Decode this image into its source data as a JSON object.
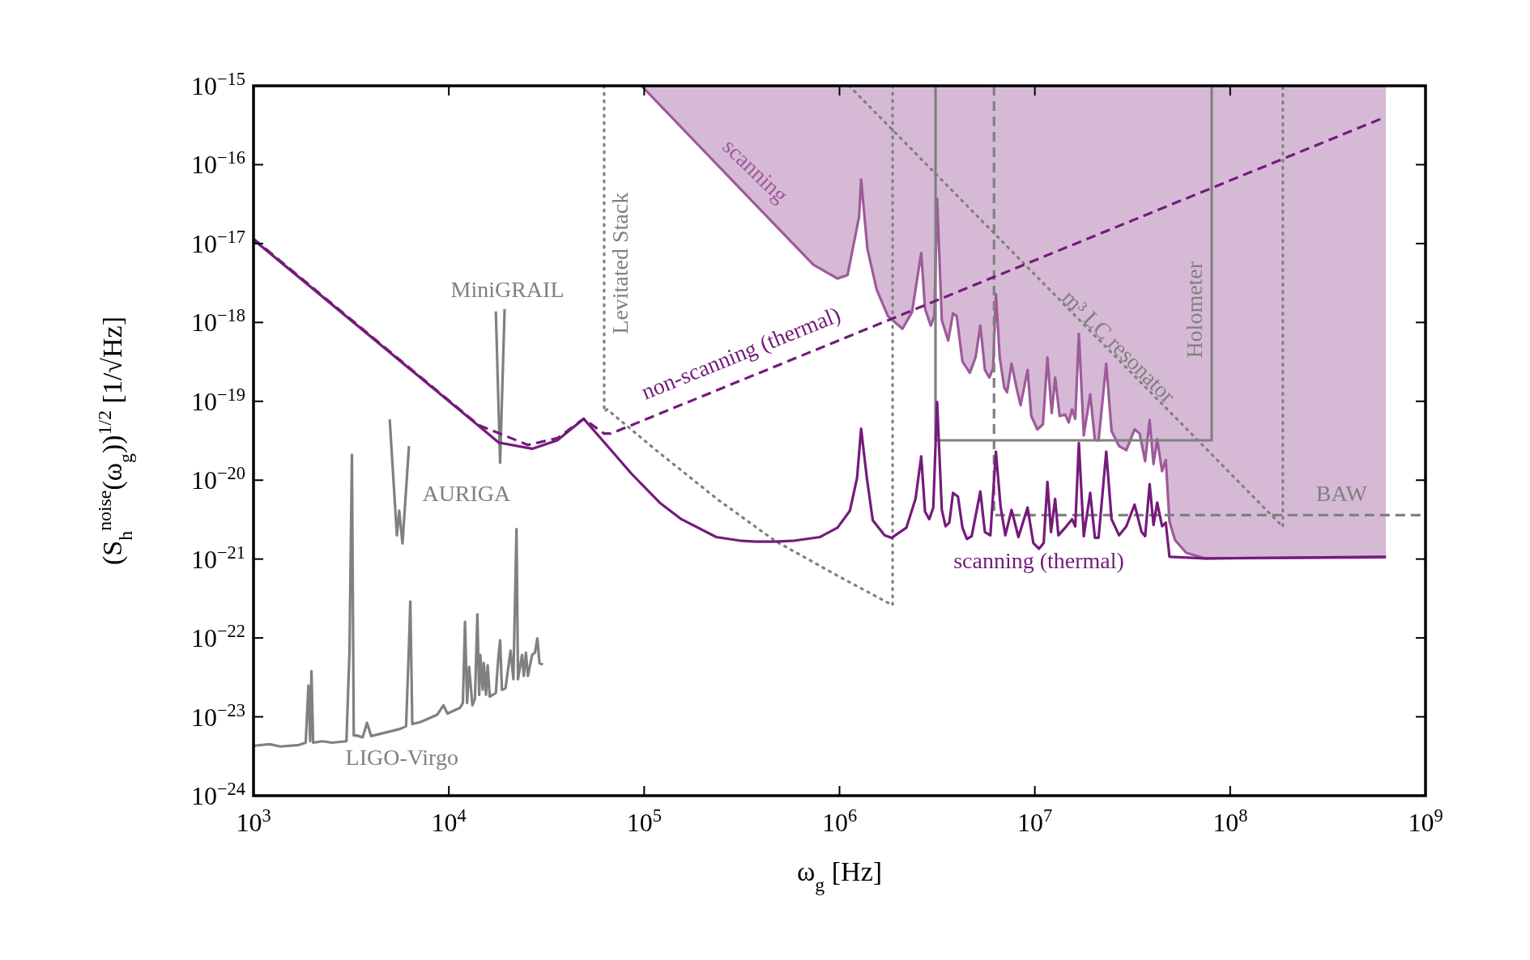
{
  "chart_data": {
    "type": "line",
    "xlabel": "ω$_{g}$ [Hz]",
    "ylabel": "(S$_{h}$$^{noise}$(ω$_{g}$))$^{1/2}$ [1/√Hz]",
    "log": "xy",
    "legend": false,
    "grid": false,
    "xlim": [
      1000,
      1000000000
    ],
    "ylim": [
      1e-24,
      1e-15
    ],
    "xticks": [
      {
        "value": 1000,
        "label": "10$^{3}$"
      },
      {
        "value": 10000,
        "label": "10$^{4}$"
      },
      {
        "value": 100000,
        "label": "10$^{5}$"
      },
      {
        "value": 1000000,
        "label": "10$^{6}$"
      },
      {
        "value": 10000000,
        "label": "10$^{7}$"
      },
      {
        "value": 100000000,
        "label": "10$^{8}$"
      },
      {
        "value": 1000000000,
        "label": "10$^{9}$"
      }
    ],
    "yticks": [
      {
        "value": 1e-24,
        "label": "10$^{−24}$"
      },
      {
        "value": 1e-23,
        "label": "10$^{−23}$"
      },
      {
        "value": 1e-22,
        "label": "10$^{−22}$"
      },
      {
        "value": 1e-21,
        "label": "10$^{−21}$"
      },
      {
        "value": 1e-20,
        "label": "10$^{−20}$"
      },
      {
        "value": 1e-19,
        "label": "10$^{−19}$"
      },
      {
        "value": 1e-18,
        "label": "10$^{−18}$"
      },
      {
        "value": 1e-17,
        "label": "10$^{−17}$"
      },
      {
        "value": 1e-16,
        "label": "10$^{−16}$"
      },
      {
        "value": 1e-15,
        "label": "10$^{−15}$"
      }
    ],
    "series": [
      {
        "name": "scanning (thermal)",
        "color": "#741b7c",
        "line_style": "solid",
        "x": [
          1000,
          14200,
          18000,
          26700,
          35900,
          49000,
          61200,
          86300,
          120000,
          155000,
          234000,
          316000,
          372000,
          468000,
          575000,
          794000,
          977000,
          1130000,
          1230000,
          1290000,
          1380000,
          1480000,
          1700000,
          1850000,
          2200000,
          2450000,
          2620000,
          2740000,
          2880000,
          3020000,
          3160000,
          3340000,
          3490000,
          3650000,
          3810000,
          4040000,
          4260000,
          4490000,
          4750000,
          5260000,
          5550000,
          5920000,
          6320000,
          6670000,
          7060000,
          7600000,
          8240000,
          9180000,
          9820000,
          10500000,
          11100000,
          11600000,
          12100000,
          12700000,
          13200000,
          14300000,
          15500000,
          16100000,
          16800000,
          17800000,
          19200000,
          20300000,
          21200000,
          23200000,
          24700000,
          27000000,
          29400000,
          32400000,
          35200000,
          36700000,
          38700000,
          40500000,
          42300000,
          44800000,
          46800000,
          48900000,
          74100000,
          627000000
        ],
        "values": [
          1.12e-17,
          4.9e-20,
          3e-20,
          2.5e-20,
          3.2e-20,
          6e-20,
          3.2e-20,
          1.2e-20,
          5.2e-21,
          3.2e-21,
          1.9e-21,
          1.7e-21,
          1.66e-21,
          1.66e-21,
          1.7e-21,
          1.9e-21,
          2.5e-21,
          4.1e-21,
          1.07e-20,
          4.5e-20,
          1.07e-20,
          3.1e-21,
          2e-21,
          1.86e-21,
          2.5e-21,
          5.8e-21,
          2e-20,
          4e-21,
          3.2e-21,
          4.5e-21,
          9.8e-20,
          4.2e-21,
          2.6e-21,
          2.9e-21,
          6.9e-21,
          6.2e-21,
          2.5e-21,
          1.8e-21,
          1.95e-21,
          7.2e-21,
          2.2e-21,
          2e-21,
          2.3e-20,
          4.7e-21,
          2e-21,
          4.2e-21,
          1.9e-21,
          4.5e-21,
          1.6e-21,
          1.35e-21,
          1.6e-21,
          9.5e-21,
          2.2e-21,
          5.8e-21,
          2e-21,
          2.5e-21,
          3.2e-21,
          2.6e-21,
          2.95e-20,
          1.95e-21,
          6.9e-21,
          1.86e-21,
          1.86e-21,
          2.3e-20,
          3.2e-21,
          2e-21,
          2.6e-21,
          4.9e-21,
          2.2e-21,
          1.95e-21,
          8.9e-21,
          2.7e-21,
          5.2e-21,
          2.6e-21,
          2.9e-21,
          1.07e-21,
          1.02e-21,
          1.07e-21
        ]
      },
      {
        "name": "non-scanning (thermal)",
        "color": "#741b7c",
        "line_style": "dashed",
        "x": [
          1000,
          14200,
          25400,
          35900,
          49000,
          62400,
          67600,
          620000000
        ],
        "values": [
          1.15e-17,
          5e-20,
          2.8e-20,
          3.4e-20,
          6e-20,
          3.9e-20,
          3.9e-20,
          4e-16
        ]
      },
      {
        "name": "scanning",
        "color": "#9e5a9b",
        "line_style": "solid",
        "x": [
          96800,
          733000,
          977000,
          1100000,
          1260000,
          1290000,
          1390000,
          1550000,
          1770000,
          2100000,
          2350000,
          2620000,
          2740000,
          2930000,
          3060000,
          3160000,
          3340000,
          3600000,
          3810000,
          3980000,
          4260000,
          4650000,
          4970000,
          5260000,
          5550000,
          5850000,
          6110000,
          6320000,
          6610000,
          6970000,
          7210000,
          7600000,
          8050000,
          8450000,
          9180000,
          9590000,
          10300000,
          11000000,
          11600000,
          12200000,
          12700000,
          13400000,
          14300000,
          14900000,
          15500000,
          16100000,
          16800000,
          17800000,
          19200000,
          20300000,
          21200000,
          23200000,
          24700000,
          27000000,
          29400000,
          32400000,
          34400000,
          36700000,
          38700000,
          40500000,
          42300000,
          44800000,
          46800000,
          48900000,
          52200000,
          59600000,
          74100000,
          627000000
        ],
        "values": [
          1e-15,
          5.4e-18,
          3.6e-18,
          4e-18,
          2.2e-17,
          6.5e-17,
          8.5e-18,
          2.6e-18,
          1.2e-18,
          8.3e-19,
          1.35e-18,
          7.6e-18,
          1.5e-18,
          9.1e-19,
          1.2e-18,
          3.7e-17,
          1.07e-18,
          5.9e-19,
          1.3e-18,
          1.2e-18,
          3.2e-19,
          2.3e-19,
          3.6e-19,
          9.1e-19,
          2.5e-19,
          2e-19,
          2.6e-19,
          2.3e-18,
          3.6e-19,
          1.5e-19,
          1.3e-19,
          3e-19,
          1.5e-19,
          8.9e-20,
          2.5e-19,
          6.5e-20,
          4.4e-20,
          5.1e-20,
          3.6e-19,
          7.1e-20,
          2e-19,
          6.5e-20,
          6.8e-20,
          5.4e-20,
          7.9e-20,
          6e-20,
          7.2e-19,
          3.7e-20,
          1.23e-19,
          3.2e-20,
          3.2e-20,
          3e-19,
          4.2e-20,
          2.7e-20,
          2.4e-20,
          4.4e-20,
          3.9e-20,
          1.74e-20,
          5.8e-20,
          1.6e-20,
          3.3e-20,
          1.3e-20,
          1.8e-20,
          3e-21,
          1.74e-21,
          1.2e-21,
          1.02e-21,
          1.05e-21
        ],
        "lower": [
          1e-15,
          5.4e-18,
          3.6e-18,
          4e-18,
          2.2e-17,
          6.5e-17,
          8.5e-18,
          2.6e-18,
          1.2e-18,
          8.3e-19,
          1.35e-18,
          7.6e-18,
          1.5e-18,
          9.1e-19,
          1.2e-18,
          3.7e-17,
          1.07e-18,
          5.9e-19,
          1.3e-18,
          1.2e-18,
          3.2e-19,
          2.3e-19,
          3.6e-19,
          9.1e-19,
          2.5e-19,
          2e-19,
          2.6e-19,
          2.3e-18,
          3.6e-19,
          1.5e-19,
          1.3e-19,
          3e-19,
          1.5e-19,
          8.9e-20,
          2.5e-19,
          6.5e-20,
          4.4e-20,
          5.1e-20,
          3.6e-19,
          7.1e-20,
          2e-19,
          6.5e-20,
          6.8e-20,
          5.4e-20,
          7.9e-20,
          6e-20,
          7.2e-19,
          3.7e-20,
          1.23e-19,
          3.2e-20,
          3.2e-20,
          3e-19,
          4.2e-20,
          2.7e-20,
          2.4e-20,
          4.4e-20,
          3.9e-20,
          1.74e-20,
          5.8e-20,
          1.6e-20,
          3.3e-20,
          1.3e-20,
          1.8e-20,
          3e-21,
          1.74e-21,
          1.2e-21,
          1.02e-21,
          1.05e-21
        ],
        "upper": [
          1e-15,
          1e-15,
          1e-15,
          1e-15,
          1e-15,
          1e-15,
          1e-15,
          1e-15,
          1e-15,
          1e-15,
          1e-15,
          1e-15,
          1e-15,
          1e-15,
          1e-15,
          1e-15,
          1e-15,
          1e-15,
          1e-15,
          1e-15,
          1e-15,
          1e-15,
          1e-15,
          1e-15,
          1e-15,
          1e-15,
          1e-15,
          1e-15,
          1e-15,
          1e-15,
          1e-15,
          1e-15,
          1e-15,
          1e-15,
          1e-15,
          1e-15,
          1e-15,
          1e-15,
          1e-15,
          1e-15,
          1e-15,
          1e-15,
          1e-15,
          1e-15,
          1e-15,
          1e-15,
          1e-15,
          1e-15,
          1e-15,
          1e-15,
          1e-15,
          1e-15,
          1e-15,
          1e-15,
          1e-15,
          1e-15,
          1e-15,
          1e-15,
          1e-15,
          1e-15,
          1e-15,
          1e-15,
          1e-15,
          1e-15,
          1e-15,
          1e-15,
          1e-15,
          1e-15
        ]
      },
      {
        "name": "Levitated Stack",
        "color": "#808080",
        "line_style": "dotted",
        "x": [
          62400,
          62400,
          64600,
          115000,
          240000,
          468000,
          1020000,
          1870000,
          1870000
        ],
        "values": [
          1e-15,
          7.4e-20,
          7.9e-20,
          2.4e-20,
          5.6e-21,
          1.7e-21,
          5.8e-22,
          2.6e-22,
          1e-15
        ]
      },
      {
        "name": "m³ LC resonator",
        "color": "#808080",
        "line_style": "dotted",
        "x": [
          1120000,
          186000000,
          186000000
        ],
        "values": [
          1e-15,
          2.57e-21,
          1e-15
        ]
      },
      {
        "name": "Holometer",
        "color": "#808080",
        "line_style": "solid",
        "x": [
          3100000,
          3100000,
          80400000,
          80400000
        ],
        "values": [
          1e-15,
          3.2e-20,
          3.2e-20,
          1e-15
        ]
      },
      {
        "name": "BAW",
        "color": "#808080",
        "line_style": "dashed",
        "x": [
          6180000,
          6180000,
          1000000000
        ],
        "values": [
          1e-15,
          3.6e-21,
          3.6e-21
        ]
      },
      {
        "name": "MiniGRAIL",
        "color": "#808080",
        "line_style": "solid",
        "x": [
          17400,
          18300,
          19300
        ],
        "values": [
          1.38e-18,
          1.66e-20,
          1.48e-18
        ]
      },
      {
        "name": "AURIGA",
        "color": "#808080",
        "line_style": "solid",
        "x": [
          4980,
          5420,
          5570,
          5790,
          6250
        ],
        "values": [
          5.9e-20,
          2e-21,
          4.1e-21,
          1.58e-21,
          2.7e-20
        ]
      },
      {
        "name": "LIGO-Virgo",
        "color": "#808080",
        "line_style": "solid",
        "x": [
          1010,
          1210,
          1370,
          1710,
          1850,
          1910,
          1950,
          1980,
          2020,
          2250,
          2520,
          2990,
          3100,
          3190,
          3260,
          3370,
          3620,
          3810,
          4000,
          5620,
          6040,
          6250,
          6350,
          6500,
          7160,
          8710,
          9380,
          9840,
          11400,
          11800,
          12100,
          12400,
          12700,
          13200,
          13600,
          14000,
          14300,
          14500,
          14900,
          15100,
          15500,
          15800,
          16200,
          17400,
          17900,
          18300,
          18700,
          19500,
          20700,
          21400,
          22200,
          22600,
          23700,
          24200,
          24800,
          25400,
          26700,
          27600,
          28400,
          29100,
          30300
        ],
        "values": [
          4.3e-24,
          4.5e-24,
          4.2e-24,
          4.4e-24,
          4.7e-24,
          2.5e-23,
          4.9e-24,
          3.8e-23,
          4.7e-24,
          4.9e-24,
          4.7e-24,
          4.9e-24,
          6.7e-23,
          2.1e-20,
          5.8e-24,
          5.8e-24,
          5.5e-24,
          8.4e-24,
          5.7e-24,
          7e-24,
          7.6e-24,
          8.3e-23,
          2.9e-22,
          8.1e-24,
          8.6e-24,
          1.06e-23,
          1.4e-23,
          1.1e-23,
          1.3e-23,
          1.5e-23,
          1.6e-22,
          1.5e-23,
          4.3e-23,
          1.4e-23,
          1.7e-23,
          2e-22,
          1.9e-23,
          6.1e-23,
          2.2e-23,
          4.8e-23,
          1.9e-23,
          4.5e-23,
          1.8e-23,
          2e-23,
          5.4e-23,
          9.3e-23,
          2.2e-23,
          2.3e-23,
          6.9e-23,
          3e-23,
          2.4e-21,
          3e-23,
          6.1e-23,
          3.3e-23,
          6.5e-23,
          3.3e-23,
          6.1e-23,
          6.5e-23,
          9.9e-23,
          4.8e-23,
          4.6e-23
        ]
      }
    ]
  }
}
